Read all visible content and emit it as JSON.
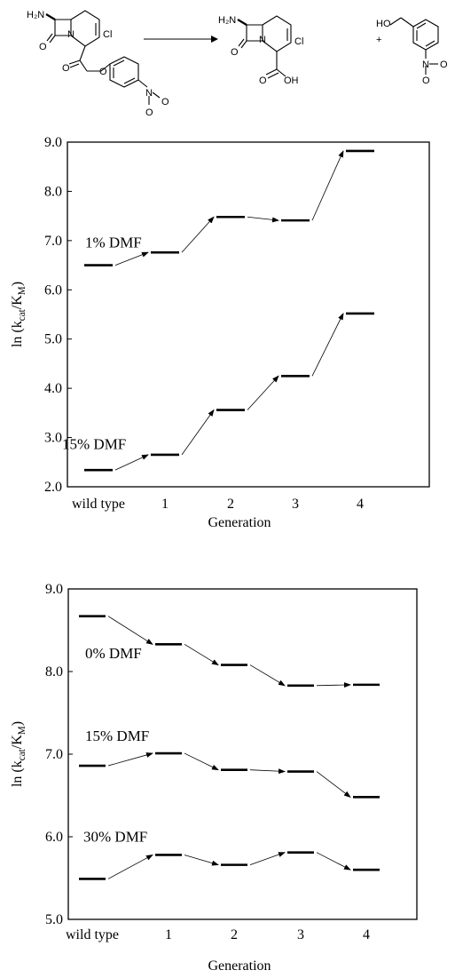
{
  "scheme": {
    "reactant": {
      "amine": "H₂N",
      "ring_o": "O",
      "n": "N",
      "cl": "Cl",
      "ester_o1": "O",
      "ester_o2": "O",
      "nitro_n": "N",
      "nitro_o1": "O",
      "nitro_o2": "O"
    },
    "product": {
      "amine": "H₂N",
      "ring_o": "O",
      "n": "N",
      "cl": "Cl",
      "acid_o": "O",
      "oh": "OH"
    },
    "plus": "+",
    "alcohol": {
      "ho": "HO",
      "nitro_n": "N",
      "nitro_o1": "O",
      "nitro_o2": "O"
    }
  },
  "chart_data": [
    {
      "type": "scatter",
      "ylabel": "ln (kcat/KM)",
      "ylabel_parts": {
        "prefix": "ln (k",
        "sub1": "cat",
        "mid": "/K",
        "sub2": "M",
        "suffix": ")"
      },
      "xlabel": "Generation",
      "categories": [
        "wild type",
        "1",
        "2",
        "3",
        "4"
      ],
      "ylim": [
        2.0,
        9.0
      ],
      "yticks": [
        "2.0",
        "3.0",
        "4.0",
        "5.0",
        "6.0",
        "7.0",
        "8.0",
        "9.0"
      ],
      "grid": false,
      "series": [
        {
          "name": "1% DMF",
          "values": [
            6.5,
            6.76,
            7.48,
            7.41,
            8.82
          ]
        },
        {
          "name": "15% DMF",
          "values": [
            2.34,
            2.65,
            3.56,
            4.25,
            5.52
          ]
        }
      ]
    },
    {
      "type": "scatter",
      "ylabel": "ln (kcat/KM)",
      "ylabel_parts": {
        "prefix": "ln (k",
        "sub1": "cat",
        "mid": "/K",
        "sub2": "M",
        "suffix": ")"
      },
      "xlabel": "Generation",
      "categories": [
        "wild type",
        "1",
        "2",
        "3",
        "4"
      ],
      "ylim": [
        5.0,
        9.0
      ],
      "yticks": [
        "5.0",
        "6.0",
        "7.0",
        "8.0",
        "9.0"
      ],
      "grid": false,
      "series": [
        {
          "name": "0% DMF",
          "values": [
            8.67,
            8.33,
            8.08,
            7.83,
            7.84
          ]
        },
        {
          "name": "15% DMF",
          "values": [
            6.86,
            7.01,
            6.81,
            6.79,
            6.48
          ]
        },
        {
          "name": "30% DMF",
          "values": [
            5.49,
            5.78,
            5.66,
            5.81,
            5.6
          ]
        }
      ]
    }
  ]
}
